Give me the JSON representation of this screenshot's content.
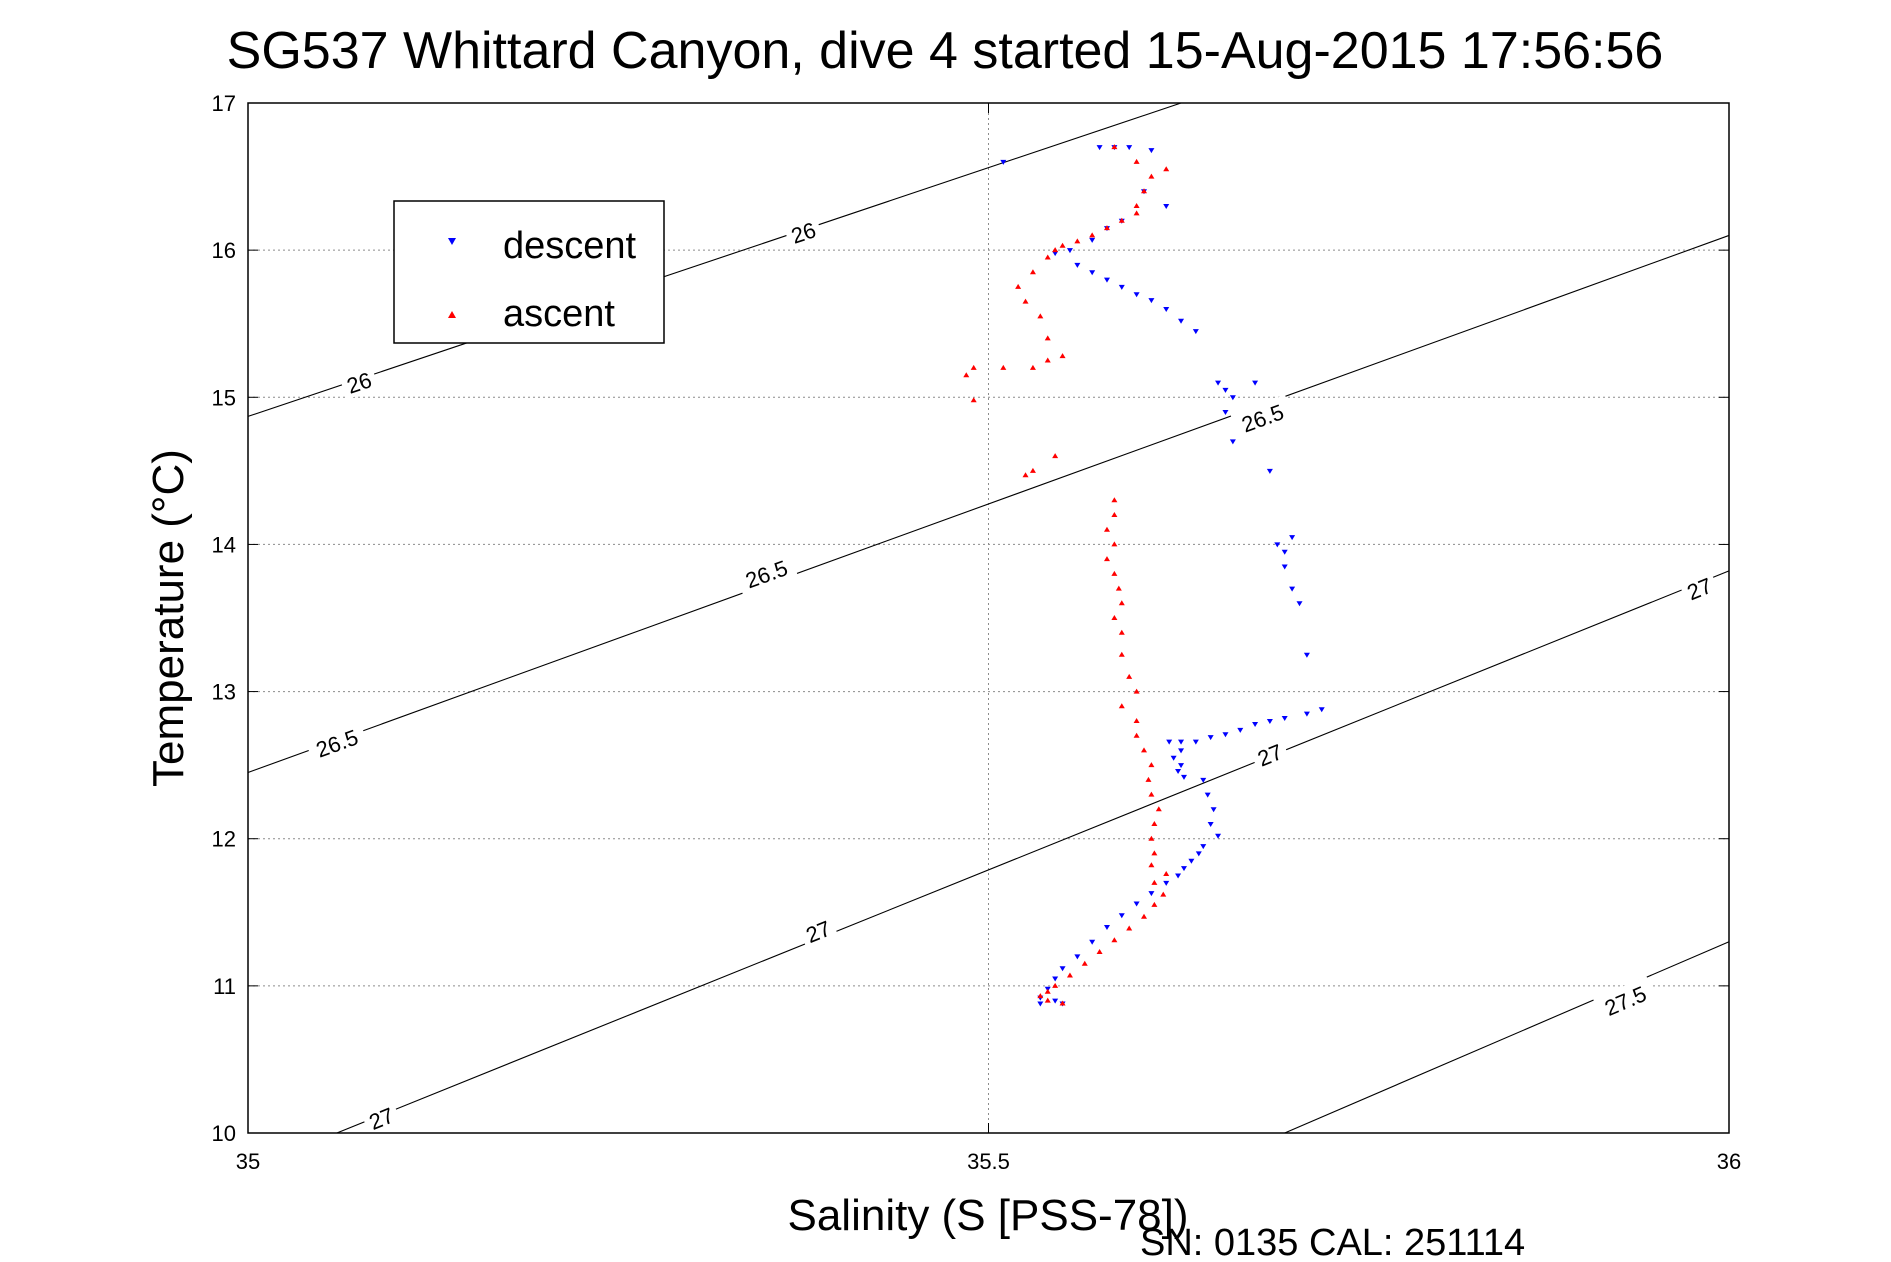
{
  "chart_data": {
    "type": "scatter",
    "title": "SG537 Whittard Canyon, dive 4 started 15-Aug-2015 17:56:56",
    "xlabel": "Salinity (S [PSS-78])",
    "ylabel": "Temperature (°C)",
    "xlim": [
      35,
      36
    ],
    "ylim": [
      10,
      17
    ],
    "x_ticks": [
      "35",
      "35.5",
      "36"
    ],
    "y_ticks": [
      "10",
      "11",
      "12",
      "13",
      "14",
      "15",
      "16",
      "17"
    ],
    "grid": true,
    "legend_position": "top-left",
    "footer_text": "SN: 0135  CAL: 251114",
    "colors": {
      "descent": "#0000ff",
      "ascent": "#ff0000",
      "contour": "#000000"
    },
    "contours": [
      {
        "label": "26",
        "points": [
          [
            35.0,
            14.87
          ],
          [
            35.63,
            17.0
          ]
        ],
        "label_positions": [
          [
            35.075,
            15.1
          ],
          [
            35.375,
            16.12
          ]
        ]
      },
      {
        "label": "26.5",
        "points": [
          [
            35.0,
            12.45
          ],
          [
            36.0,
            16.1
          ]
        ],
        "label_positions": [
          [
            35.06,
            12.65
          ],
          [
            35.35,
            13.8
          ],
          [
            35.685,
            14.86
          ]
        ]
      },
      {
        "label": "27",
        "points": [
          [
            35.06,
            10.0
          ],
          [
            36.0,
            13.82
          ]
        ],
        "label_positions": [
          [
            35.09,
            10.1
          ],
          [
            35.385,
            11.37
          ],
          [
            35.69,
            12.57
          ],
          [
            35.98,
            13.7
          ]
        ]
      },
      {
        "label": "27.5",
        "points": [
          [
            35.7,
            10.0
          ],
          [
            36.0,
            11.3
          ]
        ],
        "label_positions": [
          [
            35.93,
            10.9
          ]
        ]
      }
    ],
    "series": [
      {
        "name": "descent",
        "marker": "down-triangle",
        "points": [
          [
            35.51,
            16.6
          ],
          [
            35.575,
            16.7
          ],
          [
            35.585,
            16.7
          ],
          [
            35.595,
            16.7
          ],
          [
            35.61,
            16.68
          ],
          [
            35.605,
            16.4
          ],
          [
            35.62,
            16.3
          ],
          [
            35.58,
            16.15
          ],
          [
            35.59,
            16.2
          ],
          [
            35.57,
            16.07
          ],
          [
            35.555,
            16.0
          ],
          [
            35.545,
            15.98
          ],
          [
            35.56,
            15.9
          ],
          [
            35.57,
            15.85
          ],
          [
            35.58,
            15.8
          ],
          [
            35.59,
            15.75
          ],
          [
            35.6,
            15.7
          ],
          [
            35.61,
            15.66
          ],
          [
            35.62,
            15.6
          ],
          [
            35.63,
            15.52
          ],
          [
            35.64,
            15.45
          ],
          [
            35.655,
            15.1
          ],
          [
            35.66,
            15.05
          ],
          [
            35.665,
            15.0
          ],
          [
            35.68,
            15.1
          ],
          [
            35.66,
            14.9
          ],
          [
            35.665,
            14.7
          ],
          [
            35.69,
            14.5
          ],
          [
            35.695,
            14.0
          ],
          [
            35.7,
            13.95
          ],
          [
            35.705,
            14.05
          ],
          [
            35.7,
            13.85
          ],
          [
            35.71,
            13.6
          ],
          [
            35.705,
            13.7
          ],
          [
            35.715,
            13.25
          ],
          [
            35.725,
            12.88
          ],
          [
            35.715,
            12.85
          ],
          [
            35.7,
            12.82
          ],
          [
            35.69,
            12.8
          ],
          [
            35.68,
            12.78
          ],
          [
            35.67,
            12.74
          ],
          [
            35.66,
            12.71
          ],
          [
            35.65,
            12.69
          ],
          [
            35.64,
            12.66
          ],
          [
            35.63,
            12.66
          ],
          [
            35.622,
            12.66
          ],
          [
            35.63,
            12.6
          ],
          [
            35.625,
            12.55
          ],
          [
            35.63,
            12.5
          ],
          [
            35.628,
            12.46
          ],
          [
            35.632,
            12.42
          ],
          [
            35.645,
            12.4
          ],
          [
            35.648,
            12.3
          ],
          [
            35.652,
            12.2
          ],
          [
            35.65,
            12.1
          ],
          [
            35.655,
            12.02
          ],
          [
            35.645,
            11.95
          ],
          [
            35.642,
            11.9
          ],
          [
            35.637,
            11.85
          ],
          [
            35.632,
            11.8
          ],
          [
            35.628,
            11.75
          ],
          [
            35.62,
            11.7
          ],
          [
            35.61,
            11.63
          ],
          [
            35.6,
            11.56
          ],
          [
            35.59,
            11.48
          ],
          [
            35.58,
            11.4
          ],
          [
            35.57,
            11.3
          ],
          [
            35.56,
            11.2
          ],
          [
            35.55,
            11.12
          ],
          [
            35.545,
            11.05
          ],
          [
            35.54,
            10.98
          ],
          [
            35.535,
            10.92
          ],
          [
            35.535,
            10.88
          ],
          [
            35.545,
            10.9
          ],
          [
            35.55,
            10.88
          ]
        ]
      },
      {
        "name": "ascent",
        "marker": "up-triangle",
        "points": [
          [
            35.55,
            10.88
          ],
          [
            35.54,
            10.9
          ],
          [
            35.535,
            10.93
          ],
          [
            35.54,
            10.96
          ],
          [
            35.545,
            11.0
          ],
          [
            35.555,
            11.07
          ],
          [
            35.565,
            11.15
          ],
          [
            35.575,
            11.23
          ],
          [
            35.585,
            11.31
          ],
          [
            35.595,
            11.39
          ],
          [
            35.605,
            11.47
          ],
          [
            35.612,
            11.55
          ],
          [
            35.618,
            11.62
          ],
          [
            35.612,
            11.7
          ],
          [
            35.62,
            11.76
          ],
          [
            35.61,
            11.82
          ],
          [
            35.612,
            11.9
          ],
          [
            35.61,
            12.0
          ],
          [
            35.612,
            12.1
          ],
          [
            35.615,
            12.2
          ],
          [
            35.61,
            12.3
          ],
          [
            35.608,
            12.4
          ],
          [
            35.61,
            12.5
          ],
          [
            35.605,
            12.6
          ],
          [
            35.6,
            12.7
          ],
          [
            35.6,
            12.8
          ],
          [
            35.59,
            12.9
          ],
          [
            35.6,
            13.0
          ],
          [
            35.595,
            13.1
          ],
          [
            35.59,
            13.25
          ],
          [
            35.59,
            13.4
          ],
          [
            35.585,
            13.5
          ],
          [
            35.59,
            13.6
          ],
          [
            35.588,
            13.7
          ],
          [
            35.585,
            13.8
          ],
          [
            35.58,
            13.9
          ],
          [
            35.585,
            14.0
          ],
          [
            35.58,
            14.1
          ],
          [
            35.585,
            14.2
          ],
          [
            35.585,
            14.3
          ],
          [
            35.545,
            14.6
          ],
          [
            35.53,
            14.5
          ],
          [
            35.525,
            14.47
          ],
          [
            35.49,
            15.2
          ],
          [
            35.485,
            15.15
          ],
          [
            35.49,
            14.98
          ],
          [
            35.51,
            15.2
          ],
          [
            35.53,
            15.2
          ],
          [
            35.54,
            15.25
          ],
          [
            35.55,
            15.28
          ],
          [
            35.54,
            15.4
          ],
          [
            35.535,
            15.55
          ],
          [
            35.525,
            15.65
          ],
          [
            35.52,
            15.75
          ],
          [
            35.53,
            15.85
          ],
          [
            35.54,
            15.95
          ],
          [
            35.545,
            16.0
          ],
          [
            35.55,
            16.03
          ],
          [
            35.56,
            16.06
          ],
          [
            35.57,
            16.1
          ],
          [
            35.58,
            16.15
          ],
          [
            35.59,
            16.2
          ],
          [
            35.6,
            16.25
          ],
          [
            35.6,
            16.3
          ],
          [
            35.605,
            16.4
          ],
          [
            35.61,
            16.5
          ],
          [
            35.62,
            16.55
          ],
          [
            35.6,
            16.6
          ],
          [
            35.585,
            16.7
          ]
        ]
      }
    ]
  }
}
